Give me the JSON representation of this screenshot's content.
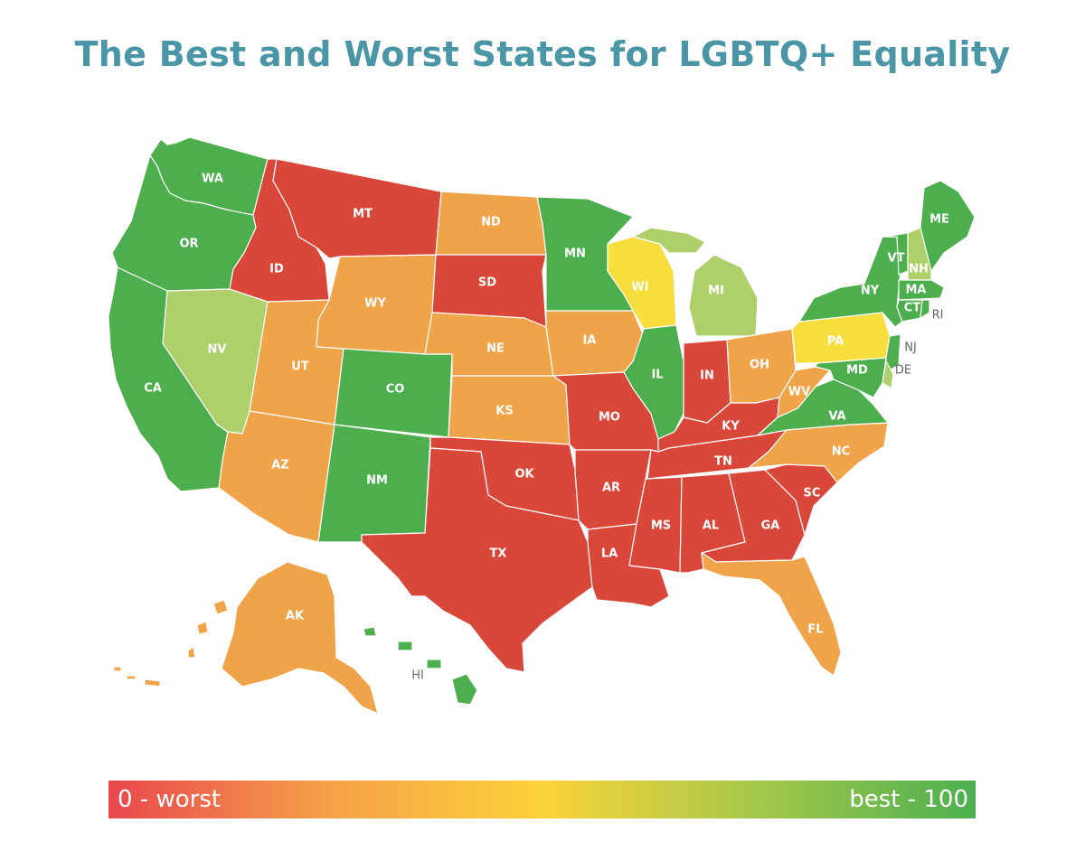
{
  "title": "The Best and Worst States for LGBTQ+ Equality",
  "colors": {
    "worst": "#d9463a",
    "low": "#f0a44a",
    "mid": "#f7de3c",
    "good": "#add06a",
    "best": "#4cae4c"
  },
  "legend": {
    "min_label": "0 - worst",
    "max_label": "best - 100",
    "gradient": [
      "#e8474c",
      "#f6a04a",
      "#fcd23a",
      "#a4c84a",
      "#4caf50"
    ]
  },
  "states": [
    {
      "code": "WA",
      "level": "best"
    },
    {
      "code": "OR",
      "level": "best"
    },
    {
      "code": "CA",
      "level": "best"
    },
    {
      "code": "NV",
      "level": "good"
    },
    {
      "code": "ID",
      "level": "worst"
    },
    {
      "code": "MT",
      "level": "worst"
    },
    {
      "code": "WY",
      "level": "low"
    },
    {
      "code": "UT",
      "level": "low"
    },
    {
      "code": "AZ",
      "level": "low"
    },
    {
      "code": "CO",
      "level": "best"
    },
    {
      "code": "NM",
      "level": "best"
    },
    {
      "code": "ND",
      "level": "low"
    },
    {
      "code": "SD",
      "level": "worst"
    },
    {
      "code": "NE",
      "level": "low"
    },
    {
      "code": "KS",
      "level": "low"
    },
    {
      "code": "OK",
      "level": "worst"
    },
    {
      "code": "TX",
      "level": "worst"
    },
    {
      "code": "MN",
      "level": "best"
    },
    {
      "code": "IA",
      "level": "low"
    },
    {
      "code": "MO",
      "level": "worst"
    },
    {
      "code": "AR",
      "level": "worst"
    },
    {
      "code": "LA",
      "level": "worst"
    },
    {
      "code": "WI",
      "level": "mid"
    },
    {
      "code": "IL",
      "level": "best"
    },
    {
      "code": "MI",
      "level": "good"
    },
    {
      "code": "IN",
      "level": "worst"
    },
    {
      "code": "OH",
      "level": "low"
    },
    {
      "code": "KY",
      "level": "worst"
    },
    {
      "code": "TN",
      "level": "worst"
    },
    {
      "code": "MS",
      "level": "worst"
    },
    {
      "code": "AL",
      "level": "worst"
    },
    {
      "code": "GA",
      "level": "worst"
    },
    {
      "code": "FL",
      "level": "low"
    },
    {
      "code": "SC",
      "level": "worst"
    },
    {
      "code": "NC",
      "level": "low"
    },
    {
      "code": "VA",
      "level": "best"
    },
    {
      "code": "WV",
      "level": "low"
    },
    {
      "code": "PA",
      "level": "mid"
    },
    {
      "code": "NY",
      "level": "best"
    },
    {
      "code": "VT",
      "level": "best"
    },
    {
      "code": "NH",
      "level": "good"
    },
    {
      "code": "ME",
      "level": "best"
    },
    {
      "code": "MA",
      "level": "best"
    },
    {
      "code": "CT",
      "level": "best"
    },
    {
      "code": "RI",
      "level": "best"
    },
    {
      "code": "NJ",
      "level": "best"
    },
    {
      "code": "DE",
      "level": "good"
    },
    {
      "code": "MD",
      "level": "best"
    },
    {
      "code": "AK",
      "level": "low"
    },
    {
      "code": "HI",
      "level": "best"
    }
  ]
}
